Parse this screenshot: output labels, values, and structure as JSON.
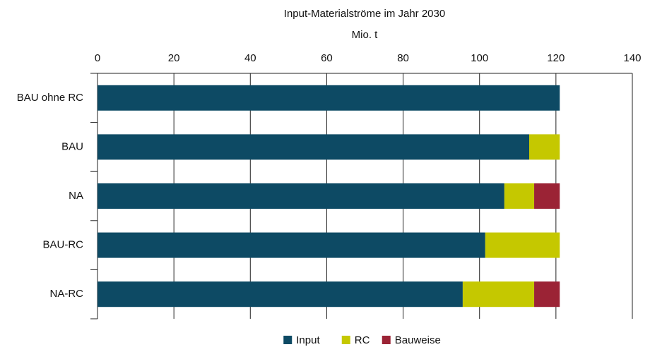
{
  "chart_data": {
    "type": "stacked-barh",
    "title": "Input-Materialströme im Jahr 2030",
    "xlabel": "Mio. t",
    "categories": [
      "BAU ohne RC",
      "BAU",
      "NA",
      "BAU-RC",
      "NA-RC"
    ],
    "series": [
      {
        "name": "Input",
        "color": "#0d4a64",
        "values": [
          121,
          113,
          106.5,
          101.5,
          95.6
        ]
      },
      {
        "name": "RC",
        "color": "#c5c800",
        "values": [
          0,
          8,
          7.8,
          19.5,
          18.7
        ]
      },
      {
        "name": "Bauweise",
        "color": "#9b2335",
        "values": [
          0,
          0,
          6.7,
          0,
          6.7
        ]
      }
    ],
    "xlim": [
      0,
      140
    ],
    "xticks": [
      0,
      20,
      40,
      60,
      80,
      100,
      120,
      140
    ],
    "grid": true,
    "legend": "bottom"
  }
}
